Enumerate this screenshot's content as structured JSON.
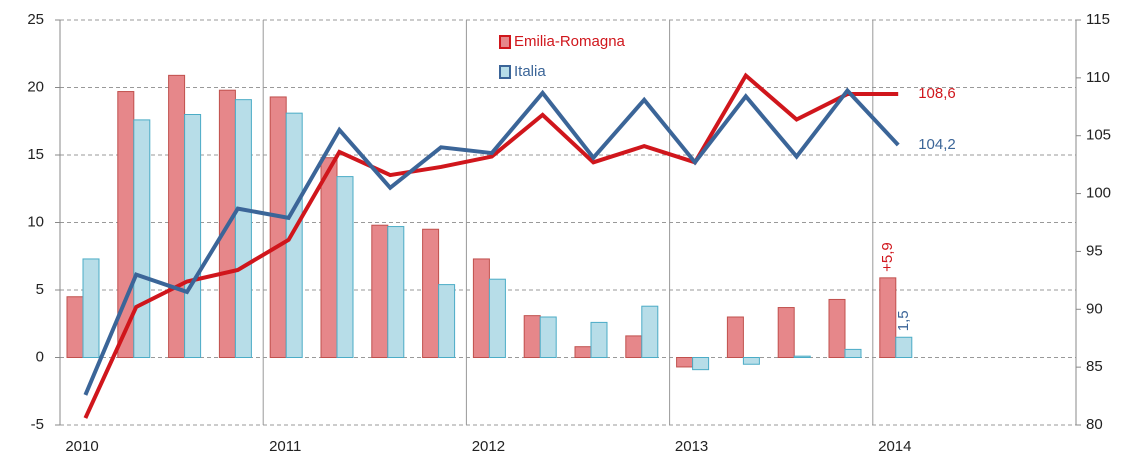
{
  "chart_data": {
    "type": "bar-line",
    "categories": [
      "2010",
      null,
      null,
      null,
      "2011",
      null,
      null,
      null,
      "2012",
      null,
      null,
      null,
      "2013",
      null,
      null,
      null,
      "2014"
    ],
    "ylim": [
      -5,
      25
    ],
    "yticks": [
      -5,
      0,
      5,
      10,
      15,
      20,
      25
    ],
    "y2lim": [
      80,
      115
    ],
    "y2ticks": [
      80,
      85,
      90,
      95,
      100,
      105,
      110,
      115
    ],
    "grid": true,
    "series": [
      {
        "name": "Emilia-Romagna",
        "color": "#e6878a",
        "edge": "#c0504d",
        "line_color": "#d0161c",
        "values": [
          4.5,
          19.7,
          20.9,
          19.8,
          19.3,
          14.8,
          9.8,
          9.5,
          7.3,
          3.1,
          0.8,
          1.6,
          -0.7,
          3.0,
          3.7,
          4.3,
          5.9
        ],
        "value_labels": [
          null,
          null,
          null,
          null,
          null,
          null,
          null,
          null,
          null,
          null,
          null,
          null,
          null,
          null,
          null,
          null,
          "+5,9"
        ],
        "line_values": [
          80.6,
          90.2,
          92.4,
          93.4,
          96.0,
          103.6,
          101.6,
          102.3,
          103.2,
          106.8,
          102.7,
          104.1,
          102.7,
          110.2,
          106.4,
          108.6,
          108.6
        ],
        "line_value_labels": [
          null,
          null,
          null,
          null,
          null,
          null,
          null,
          null,
          null,
          null,
          null,
          null,
          null,
          null,
          null,
          null,
          "108,6"
        ]
      },
      {
        "name": "Italia",
        "color": "#b7dde8",
        "edge": "#4bacc6",
        "line_color": "#3b6598",
        "values": [
          7.3,
          17.6,
          18.0,
          19.1,
          18.1,
          13.4,
          9.7,
          5.4,
          5.8,
          3.0,
          2.6,
          3.8,
          -0.9,
          -0.5,
          0.1,
          0.6,
          1.5
        ],
        "value_labels": [
          null,
          null,
          null,
          null,
          null,
          null,
          null,
          null,
          null,
          null,
          null,
          null,
          null,
          null,
          null,
          null,
          "1,5"
        ],
        "line_values": [
          82.6,
          93.0,
          91.5,
          98.7,
          97.9,
          105.5,
          100.5,
          104.0,
          103.5,
          108.7,
          103.1,
          108.1,
          102.7,
          108.4,
          103.2,
          108.9,
          104.2
        ],
        "line_value_labels": [
          null,
          null,
          null,
          null,
          null,
          null,
          null,
          null,
          null,
          null,
          null,
          null,
          null,
          null,
          null,
          null,
          "104,2"
        ]
      }
    ]
  }
}
